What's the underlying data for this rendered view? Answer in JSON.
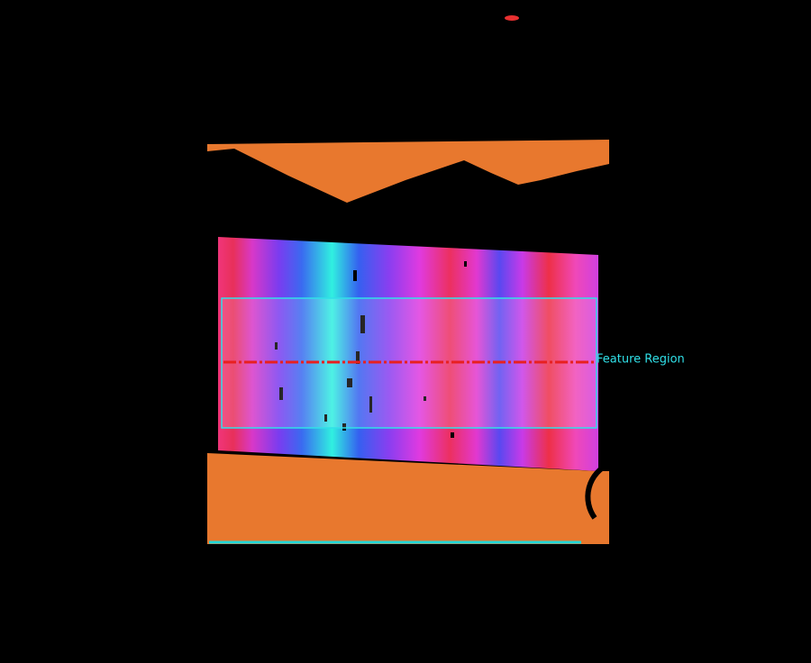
{
  "annotation": {
    "label": "Feature Region"
  }
}
